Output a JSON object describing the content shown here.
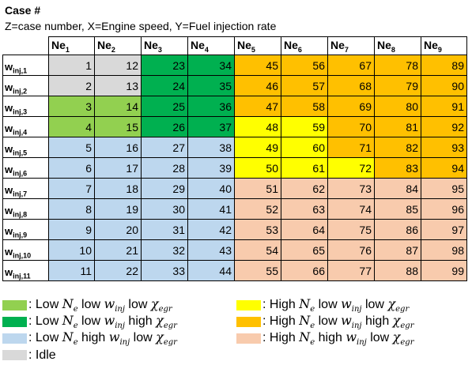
{
  "header": {
    "title": "Case #",
    "subtitle": "Z=case number, X=Engine speed, Y=Fuel injection rate"
  },
  "colors": {
    "low_low_low": "#92d050",
    "low_low_high": "#00b050",
    "low_high_low": "#bdd7ee",
    "high_low_low": "#ffff00",
    "high_low_high": "#ffc000",
    "high_high_low": "#f8cbad",
    "idle": "#d9d9d9"
  },
  "table": {
    "columns": [
      "Ne1",
      "Ne2",
      "Ne3",
      "Ne4",
      "Ne5",
      "Ne6",
      "Ne7",
      "Ne8",
      "Ne9"
    ],
    "rows": [
      {
        "label": "winj,1",
        "cells": [
          {
            "v": "1",
            "c": "idle"
          },
          {
            "v": "12",
            "c": "idle"
          },
          {
            "v": "23",
            "c": "low_low_high"
          },
          {
            "v": "34",
            "c": "low_low_high"
          },
          {
            "v": "45",
            "c": "high_low_high"
          },
          {
            "v": "56",
            "c": "high_low_high"
          },
          {
            "v": "67",
            "c": "high_low_high"
          },
          {
            "v": "78",
            "c": "high_low_high"
          },
          {
            "v": "89",
            "c": "high_low_high"
          }
        ]
      },
      {
        "label": "winj,2",
        "cells": [
          {
            "v": "2",
            "c": "idle"
          },
          {
            "v": "13",
            "c": "idle"
          },
          {
            "v": "24",
            "c": "low_low_high"
          },
          {
            "v": "35",
            "c": "low_low_high"
          },
          {
            "v": "46",
            "c": "high_low_high"
          },
          {
            "v": "57",
            "c": "high_low_high"
          },
          {
            "v": "68",
            "c": "high_low_high"
          },
          {
            "v": "79",
            "c": "high_low_high"
          },
          {
            "v": "90",
            "c": "high_low_high"
          }
        ]
      },
      {
        "label": "winj,3",
        "cells": [
          {
            "v": "3",
            "c": "low_low_low"
          },
          {
            "v": "14",
            "c": "low_low_low"
          },
          {
            "v": "25",
            "c": "low_low_high"
          },
          {
            "v": "36",
            "c": "low_low_high"
          },
          {
            "v": "47",
            "c": "high_low_high"
          },
          {
            "v": "58",
            "c": "high_low_high"
          },
          {
            "v": "69",
            "c": "high_low_high"
          },
          {
            "v": "80",
            "c": "high_low_high"
          },
          {
            "v": "91",
            "c": "high_low_high"
          }
        ]
      },
      {
        "label": "winj,4",
        "cells": [
          {
            "v": "4",
            "c": "low_low_low"
          },
          {
            "v": "15",
            "c": "low_low_low"
          },
          {
            "v": "26",
            "c": "low_low_high"
          },
          {
            "v": "37",
            "c": "low_low_high"
          },
          {
            "v": "48",
            "c": "high_low_low"
          },
          {
            "v": "59",
            "c": "high_low_low"
          },
          {
            "v": "70",
            "c": "high_low_high"
          },
          {
            "v": "81",
            "c": "high_low_high"
          },
          {
            "v": "92",
            "c": "high_low_high"
          }
        ]
      },
      {
        "label": "winj,5",
        "cells": [
          {
            "v": "5",
            "c": "low_high_low"
          },
          {
            "v": "16",
            "c": "low_high_low"
          },
          {
            "v": "27",
            "c": "low_high_low"
          },
          {
            "v": "38",
            "c": "low_high_low"
          },
          {
            "v": "49",
            "c": "high_low_low"
          },
          {
            "v": "60",
            "c": "high_low_low"
          },
          {
            "v": "71",
            "c": "high_low_high"
          },
          {
            "v": "82",
            "c": "high_low_high"
          },
          {
            "v": "93",
            "c": "high_low_high"
          }
        ]
      },
      {
        "label": "winj,6",
        "cells": [
          {
            "v": "6",
            "c": "low_high_low"
          },
          {
            "v": "17",
            "c": "low_high_low"
          },
          {
            "v": "28",
            "c": "low_high_low"
          },
          {
            "v": "39",
            "c": "low_high_low"
          },
          {
            "v": "50",
            "c": "high_low_low"
          },
          {
            "v": "61",
            "c": "high_low_low"
          },
          {
            "v": "72",
            "c": "high_low_low"
          },
          {
            "v": "83",
            "c": "high_low_high"
          },
          {
            "v": "94",
            "c": "high_low_high"
          }
        ]
      },
      {
        "label": "winj,7",
        "cells": [
          {
            "v": "7",
            "c": "low_high_low"
          },
          {
            "v": "18",
            "c": "low_high_low"
          },
          {
            "v": "29",
            "c": "low_high_low"
          },
          {
            "v": "40",
            "c": "low_high_low"
          },
          {
            "v": "51",
            "c": "high_high_low"
          },
          {
            "v": "62",
            "c": "high_high_low"
          },
          {
            "v": "73",
            "c": "high_high_low"
          },
          {
            "v": "84",
            "c": "high_high_low"
          },
          {
            "v": "95",
            "c": "high_high_low"
          }
        ]
      },
      {
        "label": "winj,8",
        "cells": [
          {
            "v": "8",
            "c": "low_high_low"
          },
          {
            "v": "19",
            "c": "low_high_low"
          },
          {
            "v": "30",
            "c": "low_high_low"
          },
          {
            "v": "41",
            "c": "low_high_low"
          },
          {
            "v": "52",
            "c": "high_high_low"
          },
          {
            "v": "63",
            "c": "high_high_low"
          },
          {
            "v": "74",
            "c": "high_high_low"
          },
          {
            "v": "85",
            "c": "high_high_low"
          },
          {
            "v": "96",
            "c": "high_high_low"
          }
        ]
      },
      {
        "label": "winj,9",
        "cells": [
          {
            "v": "9",
            "c": "low_high_low"
          },
          {
            "v": "20",
            "c": "low_high_low"
          },
          {
            "v": "31",
            "c": "low_high_low"
          },
          {
            "v": "42",
            "c": "low_high_low"
          },
          {
            "v": "53",
            "c": "high_high_low"
          },
          {
            "v": "64",
            "c": "high_high_low"
          },
          {
            "v": "75",
            "c": "high_high_low"
          },
          {
            "v": "86",
            "c": "high_high_low"
          },
          {
            "v": "97",
            "c": "high_high_low"
          }
        ]
      },
      {
        "label": "winj,10",
        "cells": [
          {
            "v": "10",
            "c": "low_high_low"
          },
          {
            "v": "21",
            "c": "low_high_low"
          },
          {
            "v": "32",
            "c": "low_high_low"
          },
          {
            "v": "43",
            "c": "low_high_low"
          },
          {
            "v": "54",
            "c": "high_high_low"
          },
          {
            "v": "65",
            "c": "high_high_low"
          },
          {
            "v": "76",
            "c": "high_high_low"
          },
          {
            "v": "87",
            "c": "high_high_low"
          },
          {
            "v": "98",
            "c": "high_high_low"
          }
        ]
      },
      {
        "label": "winj,11",
        "cells": [
          {
            "v": "11",
            "c": "low_high_low"
          },
          {
            "v": "22",
            "c": "low_high_low"
          },
          {
            "v": "33",
            "c": "low_high_low"
          },
          {
            "v": "44",
            "c": "low_high_low"
          },
          {
            "v": "55",
            "c": "high_high_low"
          },
          {
            "v": "66",
            "c": "high_high_low"
          },
          {
            "v": "77",
            "c": "high_high_low"
          },
          {
            "v": "88",
            "c": "high_high_low"
          },
          {
            "v": "99",
            "c": "high_high_low"
          }
        ]
      }
    ]
  },
  "legend": [
    {
      "key": "low_low_low",
      "label": ": Low Ne low winj low χegr"
    },
    {
      "key": "low_low_high",
      "label": ": Low Ne low winj high χegr"
    },
    {
      "key": "low_high_low",
      "label": ": Low Ne high winj low χegr"
    },
    {
      "key": "idle",
      "label": ": Idle"
    },
    {
      "key": "high_low_low",
      "label": ": High Ne low winj low χegr"
    },
    {
      "key": "high_low_high",
      "label": ": High Ne low winj high χegr"
    },
    {
      "key": "high_high_low",
      "label": ": High Ne high winj low χegr"
    }
  ]
}
